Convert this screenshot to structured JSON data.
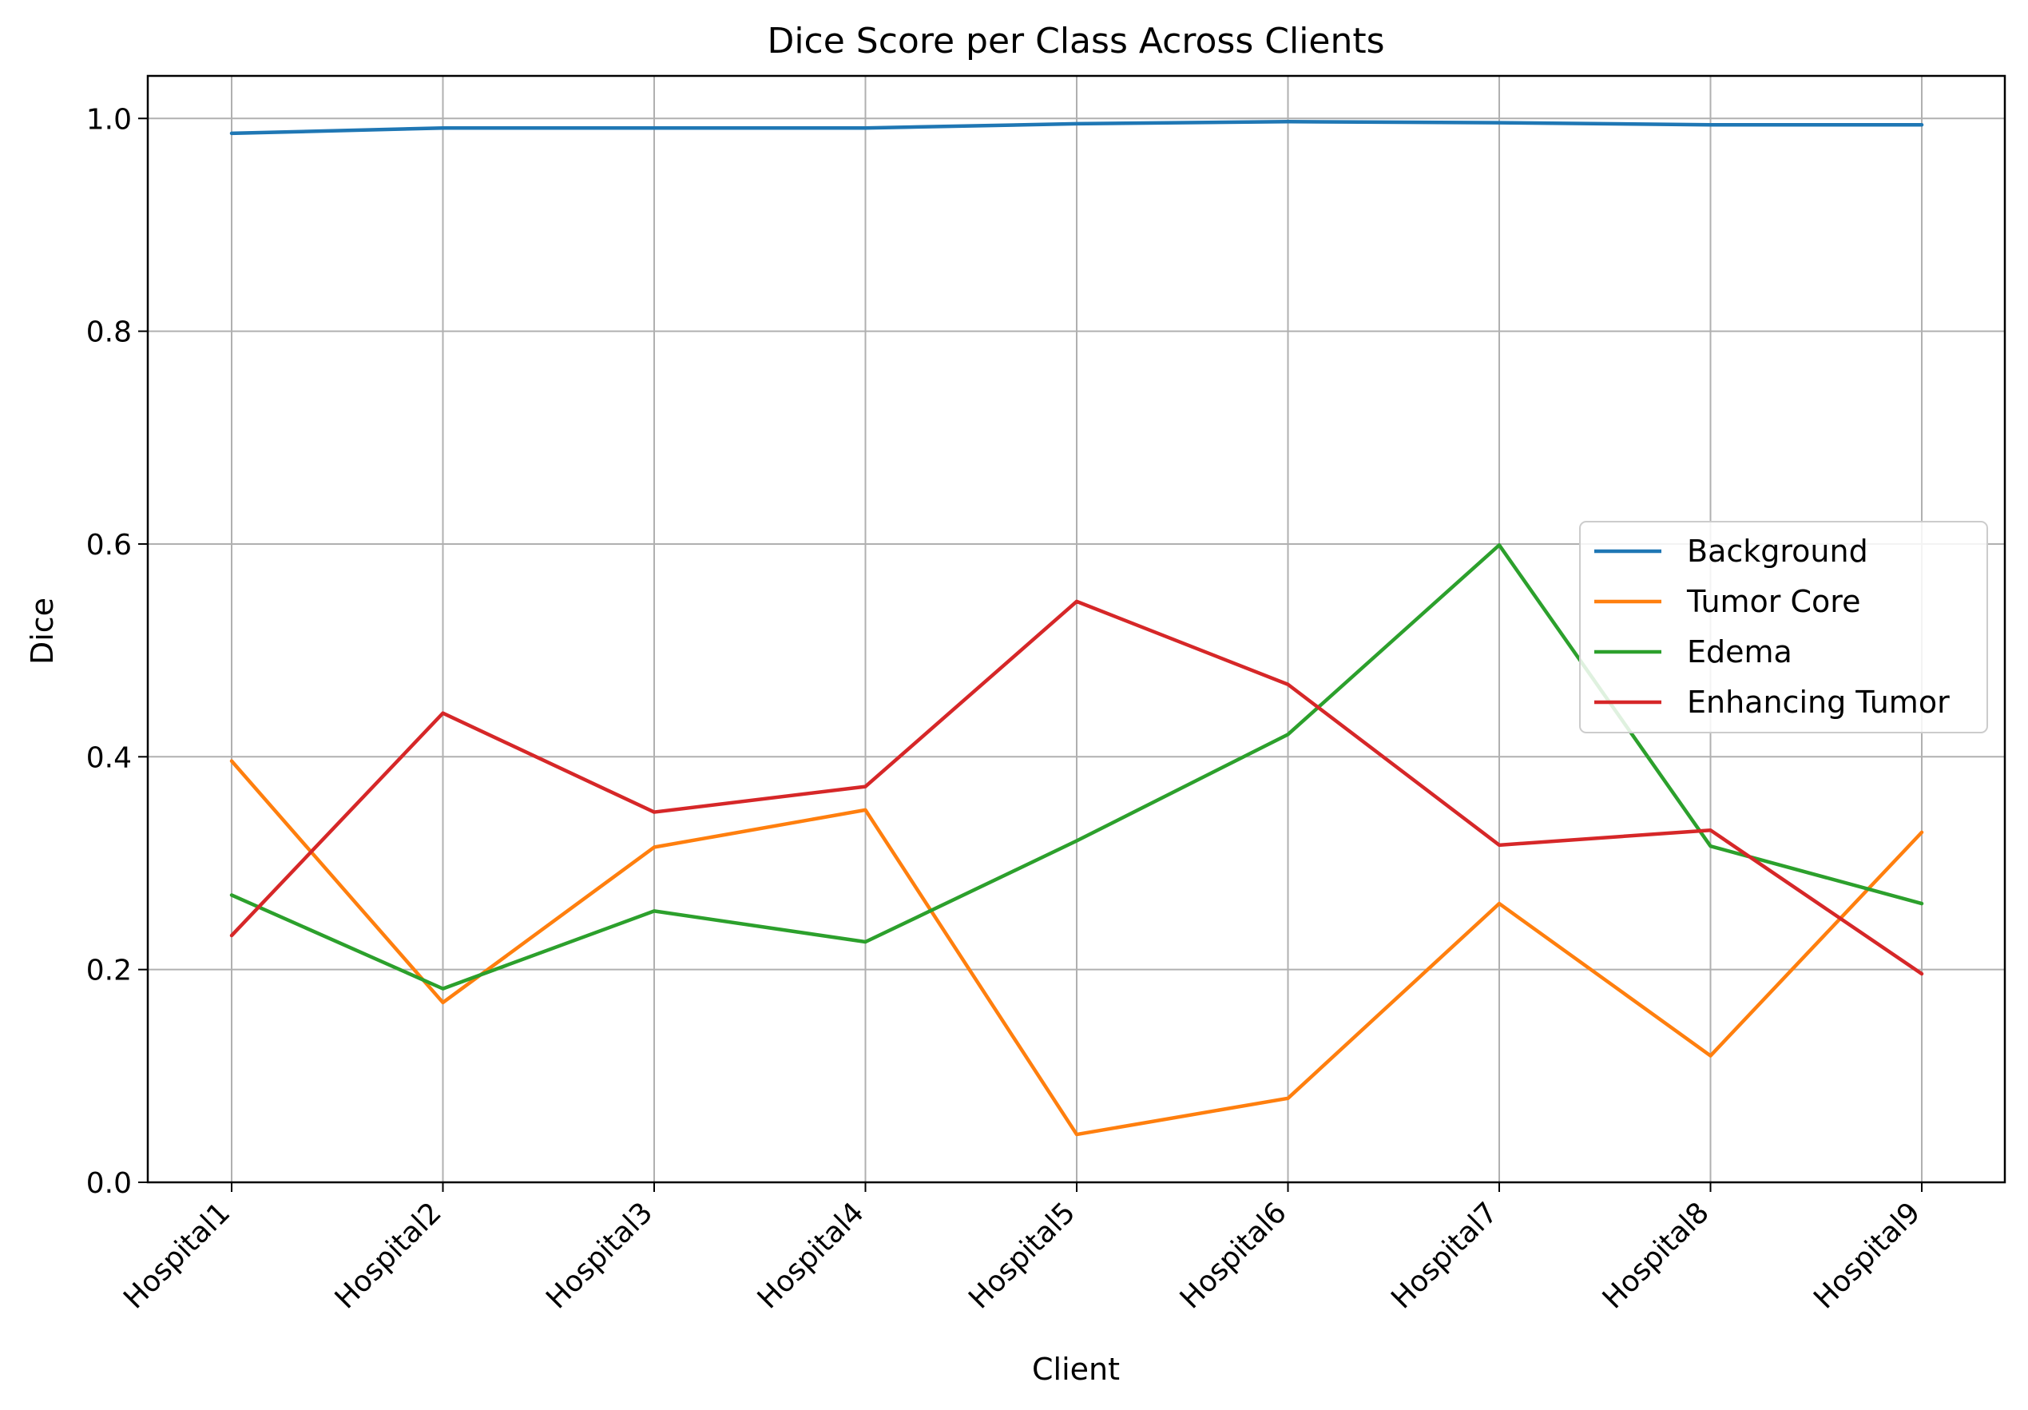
{
  "chart_data": {
    "type": "line",
    "title": "Dice Score per Class Across Clients",
    "xlabel": "Client",
    "ylabel": "Dice",
    "categories": [
      "Hospital1",
      "Hospital2",
      "Hospital3",
      "Hospital4",
      "Hospital5",
      "Hospital6",
      "Hospital7",
      "Hospital8",
      "Hospital9"
    ],
    "ylim": [
      0.0,
      1.04
    ],
    "yticks": [
      "0.0",
      "0.2",
      "0.4",
      "0.6",
      "0.8",
      "1.0"
    ],
    "grid": true,
    "legend_position": "center-right",
    "series": [
      {
        "name": "Background",
        "color": "#1f77b4",
        "values": [
          0.986,
          0.991,
          0.991,
          0.991,
          0.995,
          0.997,
          0.996,
          0.994,
          0.994
        ]
      },
      {
        "name": "Tumor Core",
        "color": "#ff7f0e",
        "values": [
          0.396,
          0.169,
          0.315,
          0.35,
          0.045,
          0.079,
          0.262,
          0.119,
          0.329
        ]
      },
      {
        "name": "Edema",
        "color": "#2ca02c",
        "values": [
          0.27,
          0.182,
          0.255,
          0.226,
          0.321,
          0.421,
          0.599,
          0.316,
          0.262
        ]
      },
      {
        "name": "Enhancing Tumor",
        "color": "#d62728",
        "values": [
          0.232,
          0.441,
          0.348,
          0.372,
          0.546,
          0.468,
          0.317,
          0.331,
          0.196
        ]
      }
    ]
  }
}
